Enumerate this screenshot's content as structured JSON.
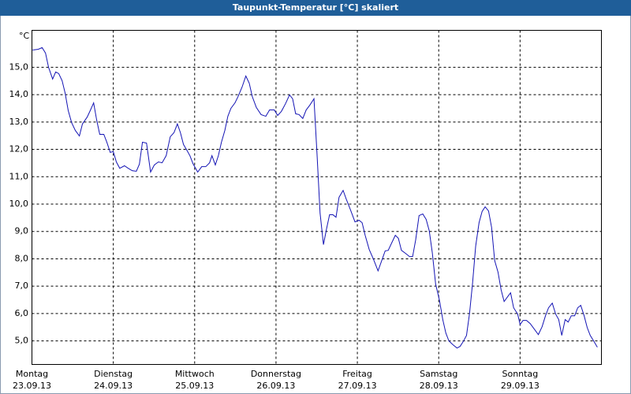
{
  "chart_data": {
    "type": "line",
    "title": "Taupunkt-Temperatur [°C] skaliert",
    "y_unit": "°C",
    "color": "#1414b4",
    "grid": true,
    "xlim": [
      0,
      168
    ],
    "ylim": [
      4.14,
      16.35
    ],
    "yticks": [
      {
        "value": 5,
        "label": "5,0"
      },
      {
        "value": 6,
        "label": "6,0"
      },
      {
        "value": 7,
        "label": "7,0"
      },
      {
        "value": 8,
        "label": "8,0"
      },
      {
        "value": 9,
        "label": "9,0"
      },
      {
        "value": 10,
        "label": "10,0"
      },
      {
        "value": 11,
        "label": "11,0"
      },
      {
        "value": 12,
        "label": "12,0"
      },
      {
        "value": 13,
        "label": "13,0"
      },
      {
        "value": 14,
        "label": "14,0"
      },
      {
        "value": 15,
        "label": "15,0"
      }
    ],
    "xticks": [
      {
        "value": 0,
        "label": "Montag"
      },
      {
        "value": 24,
        "label": "Dienstag"
      },
      {
        "value": 48,
        "label": "Mittwoch"
      },
      {
        "value": 72,
        "label": "Donnerstag"
      },
      {
        "value": 96,
        "label": "Freitag"
      },
      {
        "value": 120,
        "label": "Samstag"
      },
      {
        "value": 144,
        "label": "Sonntag"
      }
    ],
    "xtick_dates": [
      "23.09.13",
      "24.09.13",
      "25.09.13",
      "26.09.13",
      "27.09.13",
      "28.09.13",
      "29.09.13"
    ],
    "x": [
      0.2,
      1.9,
      3.0,
      4.0,
      4.9,
      6.1,
      7.0,
      7.9,
      8.9,
      9.8,
      10.7,
      11.7,
      12.8,
      14.0,
      14.9,
      16.3,
      17.2,
      18.2,
      19.1,
      20.0,
      21.2,
      22.1,
      23.1,
      24.0,
      24.9,
      25.9,
      27.3,
      28.4,
      29.6,
      30.8,
      31.7,
      32.6,
      33.8,
      35.0,
      36.1,
      37.3,
      38.4,
      39.6,
      40.8,
      41.9,
      42.9,
      43.8,
      44.7,
      45.7,
      46.6,
      47.5,
      48.9,
      50.1,
      51.3,
      52.4,
      53.1,
      54.1,
      55.0,
      55.9,
      56.9,
      57.8,
      58.7,
      59.9,
      60.8,
      62.0,
      63.1,
      64.1,
      65.0,
      66.2,
      67.6,
      69.0,
      70.1,
      71.5,
      72.5,
      73.6,
      74.8,
      76.0,
      76.9,
      77.8,
      78.8,
      79.9,
      80.9,
      82.0,
      83.2,
      84.1,
      85.0,
      86.0,
      86.9,
      87.8,
      88.8,
      89.7,
      90.6,
      91.8,
      92.7,
      93.9,
      95.3,
      96.5,
      97.4,
      98.3,
      99.5,
      100.7,
      102.1,
      103.2,
      104.2,
      105.1,
      106.2,
      107.2,
      108.1,
      109.0,
      110.2,
      111.4,
      112.3,
      113.2,
      114.2,
      115.3,
      116.3,
      117.2,
      118.1,
      119.1,
      120.2,
      121.2,
      122.1,
      123.0,
      124.2,
      125.4,
      126.3,
      127.2,
      128.2,
      129.1,
      130.0,
      130.9,
      131.9,
      132.8,
      133.7,
      134.7,
      135.6,
      136.5,
      137.5,
      138.4,
      139.3,
      140.3,
      141.2,
      142.1,
      143.3,
      144.0,
      144.9,
      145.9,
      147.0,
      148.2,
      149.4,
      150.5,
      151.5,
      152.4,
      153.5,
      154.5,
      155.4,
      156.3,
      157.3,
      158.2,
      159.1,
      160.1,
      161.0,
      161.9,
      162.9,
      163.8,
      164.7,
      165.7,
      166.8
    ],
    "values": [
      15.63,
      15.66,
      15.72,
      15.52,
      15.0,
      14.57,
      14.83,
      14.77,
      14.51,
      14.05,
      13.42,
      12.98,
      12.69,
      12.49,
      12.93,
      13.18,
      13.42,
      13.7,
      13.07,
      12.55,
      12.55,
      12.26,
      11.89,
      11.92,
      11.54,
      11.31,
      11.4,
      11.31,
      11.22,
      11.2,
      11.46,
      12.26,
      12.23,
      11.17,
      11.43,
      11.54,
      11.51,
      11.77,
      12.46,
      12.61,
      12.93,
      12.61,
      12.18,
      11.97,
      11.77,
      11.48,
      11.17,
      11.37,
      11.37,
      11.51,
      11.77,
      11.43,
      11.77,
      12.26,
      12.69,
      13.21,
      13.5,
      13.7,
      13.93,
      14.28,
      14.68,
      14.42,
      13.93,
      13.53,
      13.27,
      13.21,
      13.44,
      13.44,
      13.24,
      13.39,
      13.67,
      13.99,
      13.85,
      13.3,
      13.27,
      13.13,
      13.44,
      13.62,
      13.85,
      11.83,
      9.67,
      8.52,
      9.09,
      9.61,
      9.61,
      9.52,
      10.25,
      10.5,
      10.19,
      9.81,
      9.35,
      9.41,
      9.32,
      8.86,
      8.34,
      8.0,
      7.56,
      7.94,
      8.29,
      8.31,
      8.6,
      8.86,
      8.75,
      8.31,
      8.2,
      8.08,
      8.08,
      8.69,
      9.58,
      9.64,
      9.44,
      9.03,
      8.23,
      7.07,
      6.5,
      5.78,
      5.29,
      5.0,
      4.86,
      4.74,
      4.8,
      4.97,
      5.2,
      6.01,
      7.13,
      8.46,
      9.32,
      9.73,
      9.9,
      9.75,
      9.15,
      7.94,
      7.51,
      6.87,
      6.44,
      6.61,
      6.76,
      6.21,
      5.98,
      5.6,
      5.75,
      5.75,
      5.63,
      5.43,
      5.23,
      5.52,
      5.92,
      6.21,
      6.38,
      5.98,
      5.78,
      5.2,
      5.78,
      5.69,
      5.92,
      5.92,
      6.21,
      6.3,
      5.92,
      5.49,
      5.2,
      5.0,
      4.77
    ]
  }
}
